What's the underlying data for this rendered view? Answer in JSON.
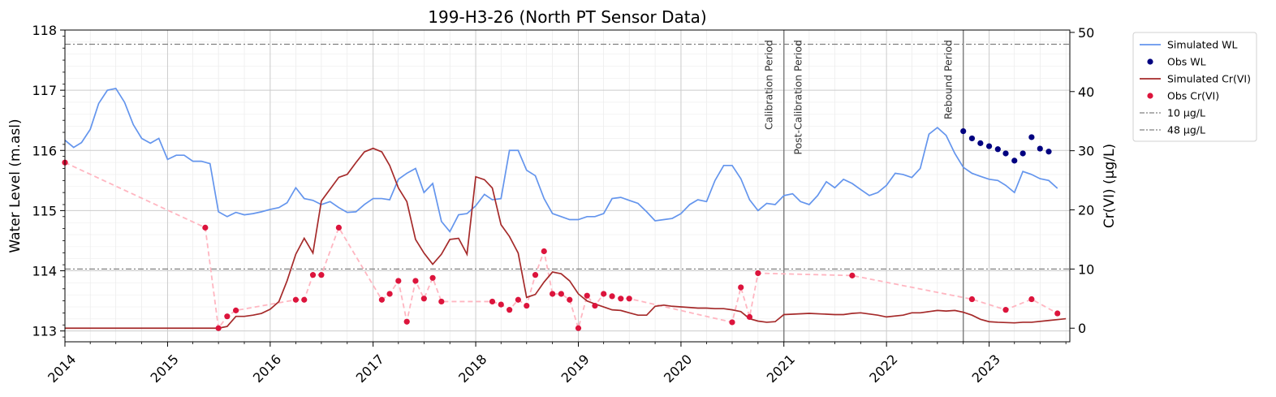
{
  "chart_data": {
    "type": "line",
    "title": "199-H3-26 (North PT Sensor Data)",
    "ylabel": "Water Level (m.asl)",
    "y2label": "Cr(VI) (µg/L)",
    "xlabel": "",
    "xlim": [
      "2014-01-01",
      "2023-10-15"
    ],
    "ylim": [
      112.82,
      118.0
    ],
    "y2lim": [
      -2.3,
      50.4
    ],
    "x_ticks": [
      "2014",
      "2015",
      "2016",
      "2017",
      "2018",
      "2019",
      "2020",
      "2021",
      "2022",
      "2023"
    ],
    "y_ticks": [
      113,
      114,
      115,
      116,
      117,
      118
    ],
    "y2_ticks": [
      0,
      10,
      20,
      30,
      40,
      50
    ],
    "grid": true,
    "legend_position": "outside right",
    "colors": {
      "sim_wl": "#6495ed",
      "obs_wl": "#000080",
      "sim_cr": "#a52a2a",
      "obs_cr": "#dc143c",
      "obs_cr_line": "#ffb6c1",
      "threshold": "#808080",
      "period_line": "#808080"
    },
    "periods": [
      {
        "date": "2021-01-01",
        "left_label": "Calibration Period",
        "right_label": "Post-Calibration Period"
      },
      {
        "date": "2022-10-01",
        "left_label": "Rebound Period",
        "right_label": ""
      }
    ],
    "thresholds": [
      {
        "name": "10 µg/L",
        "value": 10
      },
      {
        "name": "48 µg/L",
        "value": 48
      }
    ],
    "series": [
      {
        "name": "Simulated WL",
        "axis": "left",
        "kind": "line",
        "x": [
          "2014-01-01",
          "2014-02-01",
          "2014-03-01",
          "2014-04-01",
          "2014-05-01",
          "2014-06-01",
          "2014-07-01",
          "2014-08-01",
          "2014-09-01",
          "2014-10-01",
          "2014-11-01",
          "2014-12-01",
          "2015-01-01",
          "2015-02-01",
          "2015-03-01",
          "2015-04-01",
          "2015-05-01",
          "2015-06-01",
          "2015-07-01",
          "2015-08-01",
          "2015-09-01",
          "2015-10-01",
          "2015-11-01",
          "2015-12-01",
          "2016-01-01",
          "2016-02-01",
          "2016-03-01",
          "2016-04-01",
          "2016-05-01",
          "2016-06-01",
          "2016-07-01",
          "2016-08-01",
          "2016-09-01",
          "2016-10-01",
          "2016-11-01",
          "2016-12-01",
          "2017-01-01",
          "2017-02-01",
          "2017-03-01",
          "2017-04-01",
          "2017-05-01",
          "2017-06-01",
          "2017-07-01",
          "2017-08-01",
          "2017-09-01",
          "2017-10-01",
          "2017-11-01",
          "2017-12-01",
          "2018-01-01",
          "2018-02-01",
          "2018-03-01",
          "2018-04-01",
          "2018-05-01",
          "2018-06-01",
          "2018-07-01",
          "2018-08-01",
          "2018-09-01",
          "2018-10-01",
          "2018-11-01",
          "2018-12-01",
          "2019-01-01",
          "2019-02-01",
          "2019-03-01",
          "2019-04-01",
          "2019-05-01",
          "2019-06-01",
          "2019-07-01",
          "2019-08-01",
          "2019-09-01",
          "2019-10-01",
          "2019-11-01",
          "2019-12-01",
          "2020-01-01",
          "2020-02-01",
          "2020-03-01",
          "2020-04-01",
          "2020-05-01",
          "2020-06-01",
          "2020-07-01",
          "2020-08-01",
          "2020-09-01",
          "2020-10-01",
          "2020-11-01",
          "2020-12-01",
          "2021-01-01",
          "2021-02-01",
          "2021-03-01",
          "2021-04-01",
          "2021-05-01",
          "2021-06-01",
          "2021-07-01",
          "2021-08-01",
          "2021-09-01",
          "2021-10-01",
          "2021-11-01",
          "2021-12-01",
          "2022-01-01",
          "2022-02-01",
          "2022-03-01",
          "2022-04-01",
          "2022-05-01",
          "2022-06-01",
          "2022-07-01",
          "2022-08-01",
          "2022-09-01",
          "2022-10-01",
          "2022-11-01",
          "2022-12-01",
          "2023-01-01",
          "2023-02-01",
          "2023-03-01",
          "2023-04-01",
          "2023-05-01",
          "2023-06-01",
          "2023-07-01",
          "2023-08-01",
          "2023-09-01"
        ],
        "y": [
          116.17,
          116.05,
          116.13,
          116.35,
          116.78,
          117.0,
          117.03,
          116.8,
          116.43,
          116.2,
          116.12,
          116.2,
          115.85,
          115.92,
          115.92,
          115.82,
          115.82,
          115.78,
          114.98,
          114.9,
          114.97,
          114.93,
          114.95,
          114.98,
          115.02,
          115.05,
          115.13,
          115.38,
          115.2,
          115.17,
          115.1,
          115.15,
          115.05,
          114.97,
          114.98,
          115.1,
          115.2,
          115.2,
          115.18,
          115.52,
          115.62,
          115.7,
          115.3,
          115.45,
          114.82,
          114.65,
          114.93,
          114.95,
          115.08,
          115.27,
          115.18,
          115.2,
          116.0,
          116.0,
          115.67,
          115.58,
          115.2,
          114.95,
          114.9,
          114.85,
          114.85,
          114.9,
          114.9,
          114.95,
          115.2,
          115.22,
          115.17,
          115.12,
          114.98,
          114.83,
          114.85,
          114.87,
          114.95,
          115.1,
          115.18,
          115.15,
          115.5,
          115.75,
          115.75,
          115.53,
          115.18,
          115.0,
          115.12,
          115.1,
          115.25,
          115.28,
          115.15,
          115.1,
          115.25,
          115.48,
          115.38,
          115.52,
          115.45,
          115.35,
          115.25,
          115.3,
          115.42,
          115.62,
          115.6,
          115.55,
          115.7,
          116.27,
          116.38,
          116.25,
          115.95,
          115.72,
          115.62,
          115.57,
          115.52,
          115.5,
          115.42,
          115.3,
          115.65,
          115.6,
          115.53,
          115.5,
          115.37
        ]
      },
      {
        "name": "Obs WL",
        "axis": "left",
        "kind": "scatter",
        "x": [
          "2022-10-01",
          "2022-11-01",
          "2022-12-01",
          "2023-01-01",
          "2023-02-01",
          "2023-03-01",
          "2023-04-01",
          "2023-05-01",
          "2023-06-01",
          "2023-07-01",
          "2023-08-01"
        ],
        "y": [
          116.32,
          116.2,
          116.12,
          116.07,
          116.02,
          115.95,
          115.83,
          115.95,
          116.22,
          116.03,
          115.98
        ]
      },
      {
        "name": "Simulated Cr(VI)",
        "axis": "right",
        "kind": "line",
        "x": [
          "2014-01-01",
          "2015-06-01",
          "2015-07-01",
          "2015-08-01",
          "2015-09-01",
          "2015-10-01",
          "2015-11-01",
          "2015-12-01",
          "2016-01-01",
          "2016-02-01",
          "2016-03-01",
          "2016-04-01",
          "2016-05-01",
          "2016-06-01",
          "2016-07-01",
          "2016-08-01",
          "2016-09-01",
          "2016-10-01",
          "2016-11-01",
          "2016-12-01",
          "2017-01-01",
          "2017-02-01",
          "2017-03-01",
          "2017-04-01",
          "2017-05-01",
          "2017-06-01",
          "2017-07-01",
          "2017-08-01",
          "2017-09-01",
          "2017-10-01",
          "2017-11-01",
          "2017-12-01",
          "2018-01-01",
          "2018-02-01",
          "2018-03-01",
          "2018-04-01",
          "2018-05-01",
          "2018-06-01",
          "2018-07-01",
          "2018-08-01",
          "2018-09-01",
          "2018-10-01",
          "2018-11-01",
          "2018-12-01",
          "2019-01-01",
          "2019-02-01",
          "2019-03-01",
          "2019-04-01",
          "2019-05-01",
          "2019-06-01",
          "2019-07-01",
          "2019-08-01",
          "2019-09-01",
          "2019-10-01",
          "2019-11-01",
          "2019-12-01",
          "2020-01-01",
          "2020-02-01",
          "2020-03-01",
          "2020-04-01",
          "2020-05-01",
          "2020-06-01",
          "2020-07-01",
          "2020-08-01",
          "2020-09-01",
          "2020-10-01",
          "2020-11-01",
          "2020-12-01",
          "2021-01-01",
          "2021-04-01",
          "2021-07-01",
          "2021-08-01",
          "2021-09-01",
          "2021-10-01",
          "2021-12-01",
          "2022-01-01",
          "2022-03-01",
          "2022-04-01",
          "2022-05-01",
          "2022-06-01",
          "2022-07-01",
          "2022-08-01",
          "2022-09-01",
          "2022-10-01",
          "2022-11-01",
          "2022-12-01",
          "2023-01-01",
          "2023-02-01",
          "2023-04-01",
          "2023-05-01",
          "2023-06-01",
          "2023-08-01",
          "2023-10-01"
        ],
        "y": [
          0.0,
          0.0,
          0.0,
          0.3,
          2.0,
          2.0,
          2.2,
          2.5,
          3.2,
          4.5,
          8.0,
          12.5,
          15.2,
          12.7,
          21.5,
          23.5,
          25.5,
          26.0,
          28.0,
          29.8,
          30.4,
          29.8,
          27.5,
          23.7,
          21.4,
          15.0,
          12.7,
          10.8,
          12.5,
          15.0,
          15.2,
          12.5,
          25.6,
          25.1,
          23.7,
          17.5,
          15.5,
          12.7,
          5.2,
          5.7,
          7.8,
          9.5,
          9.2,
          8.0,
          5.8,
          4.6,
          4.1,
          3.6,
          3.1,
          3.0,
          2.6,
          2.2,
          2.2,
          3.7,
          3.9,
          3.7,
          3.6,
          3.5,
          3.4,
          3.4,
          3.3,
          3.3,
          3.1,
          2.8,
          1.6,
          1.2,
          1.0,
          1.1,
          2.3,
          2.5,
          2.3,
          2.3,
          2.5,
          2.6,
          2.2,
          1.9,
          2.2,
          2.6,
          2.6,
          2.8,
          3.0,
          2.9,
          3.0,
          2.7,
          2.2,
          1.5,
          1.1,
          1.0,
          0.9,
          1.0,
          1.0,
          1.3,
          1.6
        ]
      },
      {
        "name": "Obs Cr(VI)",
        "axis": "right",
        "kind": "scatter-dashed",
        "x": [
          "2014-01-01",
          "2015-05-15",
          "2015-07-01",
          "2015-08-01",
          "2015-09-01",
          "2016-04-01",
          "2016-05-01",
          "2016-06-01",
          "2016-07-01",
          "2016-09-01",
          "2017-02-01",
          "2017-03-01",
          "2017-04-01",
          "2017-05-01",
          "2017-06-01",
          "2017-07-01",
          "2017-08-01",
          "2017-09-01",
          "2018-03-01",
          "2018-04-01",
          "2018-05-01",
          "2018-06-01",
          "2018-07-01",
          "2018-08-01",
          "2018-09-01",
          "2018-10-01",
          "2018-11-01",
          "2018-12-01",
          "2019-01-01",
          "2019-02-01",
          "2019-03-01",
          "2019-04-01",
          "2019-05-01",
          "2019-06-01",
          "2019-07-01",
          "2020-07-01",
          "2020-08-01",
          "2020-09-01",
          "2020-10-01",
          "2021-09-01",
          "2022-11-01",
          "2023-03-01",
          "2023-06-01",
          "2023-09-01"
        ],
        "y": [
          28.0,
          17.0,
          0.0,
          2.0,
          3.0,
          4.8,
          4.8,
          9.0,
          9.0,
          17.0,
          4.8,
          5.8,
          8.0,
          1.1,
          8.0,
          5.0,
          8.5,
          4.5,
          4.5,
          4.0,
          3.1,
          4.8,
          3.8,
          9.0,
          13.0,
          5.8,
          5.8,
          4.8,
          0.0,
          5.5,
          3.8,
          5.8,
          5.4,
          5.0,
          5.0,
          1.0,
          6.9,
          1.9,
          9.3,
          8.9,
          4.9,
          3.1,
          4.9,
          2.5
        ]
      }
    ]
  }
}
